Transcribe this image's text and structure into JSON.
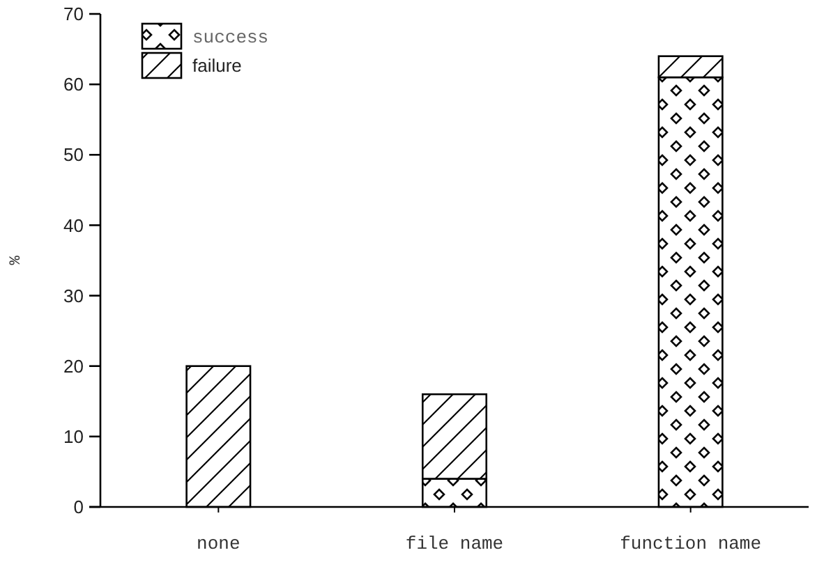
{
  "chart_data": {
    "type": "bar",
    "ylabel": "%",
    "categories": [
      "none",
      "file name",
      "function name"
    ],
    "stacked": true,
    "series": [
      {
        "name": "success",
        "color": "#000000",
        "values": [
          0,
          4,
          61
        ]
      },
      {
        "name": "failure",
        "color": "#000000",
        "values": [
          20,
          12,
          3
        ]
      }
    ],
    "ylim": [
      0,
      70
    ],
    "yticks": [
      0,
      10,
      20,
      30,
      40,
      50,
      60,
      70
    ],
    "grid": false,
    "legend": "top left"
  }
}
